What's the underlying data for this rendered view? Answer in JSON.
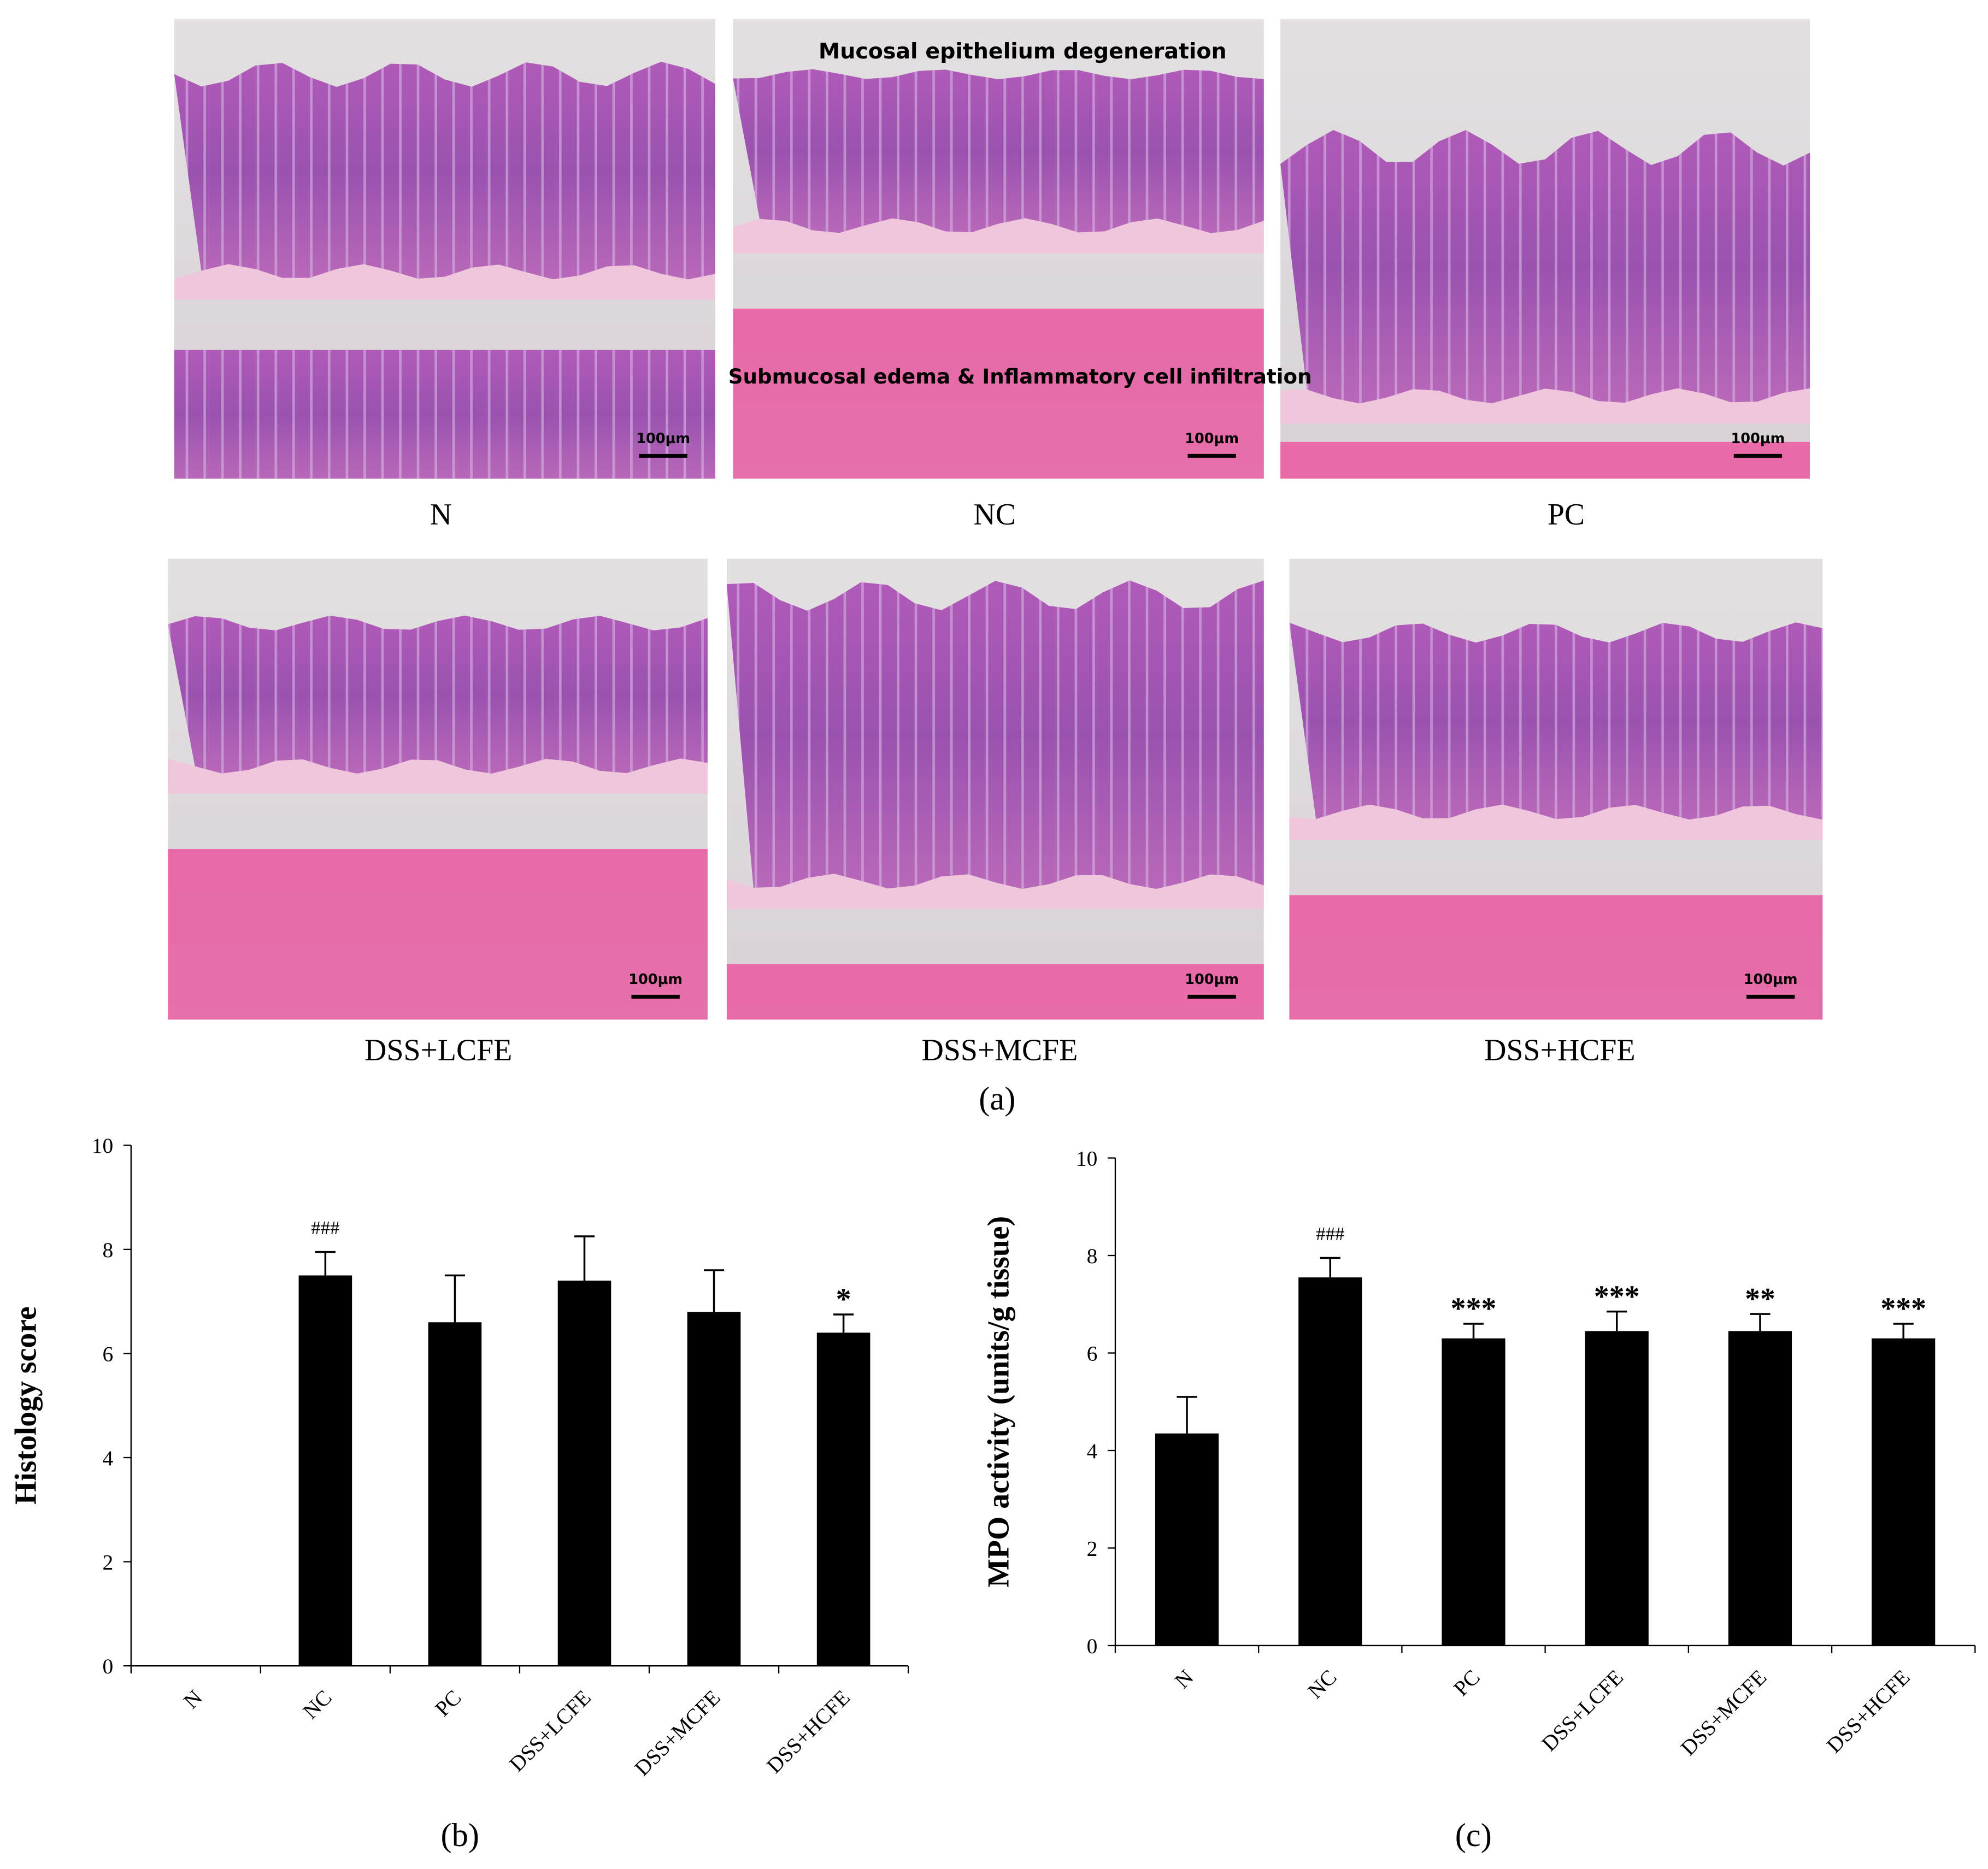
{
  "figure_a": {
    "caption": "(a)",
    "annotations": [
      "Mucosal epithelium degeneration",
      "Submucosal edema & Inflammatory cell infiltration"
    ],
    "panels": [
      {
        "label": "N",
        "scale_bar": "100μm"
      },
      {
        "label": "NC",
        "scale_bar": "100μm"
      },
      {
        "label": "PC",
        "scale_bar": "100μm"
      },
      {
        "label": "DSS+LCFE",
        "scale_bar": "100μm"
      },
      {
        "label": "DSS+MCFE",
        "scale_bar": "100μm"
      },
      {
        "label": "DSS+HCFE",
        "scale_bar": "100μm"
      }
    ]
  },
  "chart_data": [
    {
      "type": "bar",
      "caption": "(b)",
      "y_label": "Histology score",
      "categories": [
        "N",
        "NC",
        "PC",
        "DSS+LCFE",
        "DSS+MCFE",
        "DSS+HCFE"
      ],
      "values": [
        0,
        7.5,
        6.6,
        7.4,
        6.8,
        6.4
      ],
      "errors": [
        null,
        0.45,
        0.9,
        0.85,
        0.8,
        0.35
      ],
      "annotations": [
        null,
        "###",
        null,
        null,
        null,
        "*"
      ],
      "color": "#000000",
      "ylim": [
        0,
        10
      ],
      "yticks": [
        0,
        2,
        4,
        6,
        8,
        10
      ]
    },
    {
      "type": "bar",
      "caption": "(c)",
      "y_label": "MPO activity (units/g tissue)",
      "categories": [
        "N",
        "NC",
        "PC",
        "DSS+LCFE",
        "DSS+MCFE",
        "DSS+HCFE"
      ],
      "values": [
        4.35,
        7.55,
        6.3,
        6.45,
        6.45,
        6.3
      ],
      "errors": [
        0.75,
        0.4,
        0.3,
        0.4,
        0.35,
        0.3
      ],
      "annotations": [
        null,
        "###",
        "***",
        "***",
        "**",
        "***"
      ],
      "color": "#000000",
      "ylim": [
        0,
        10
      ],
      "yticks": [
        0,
        2,
        4,
        6,
        8,
        10
      ]
    }
  ]
}
